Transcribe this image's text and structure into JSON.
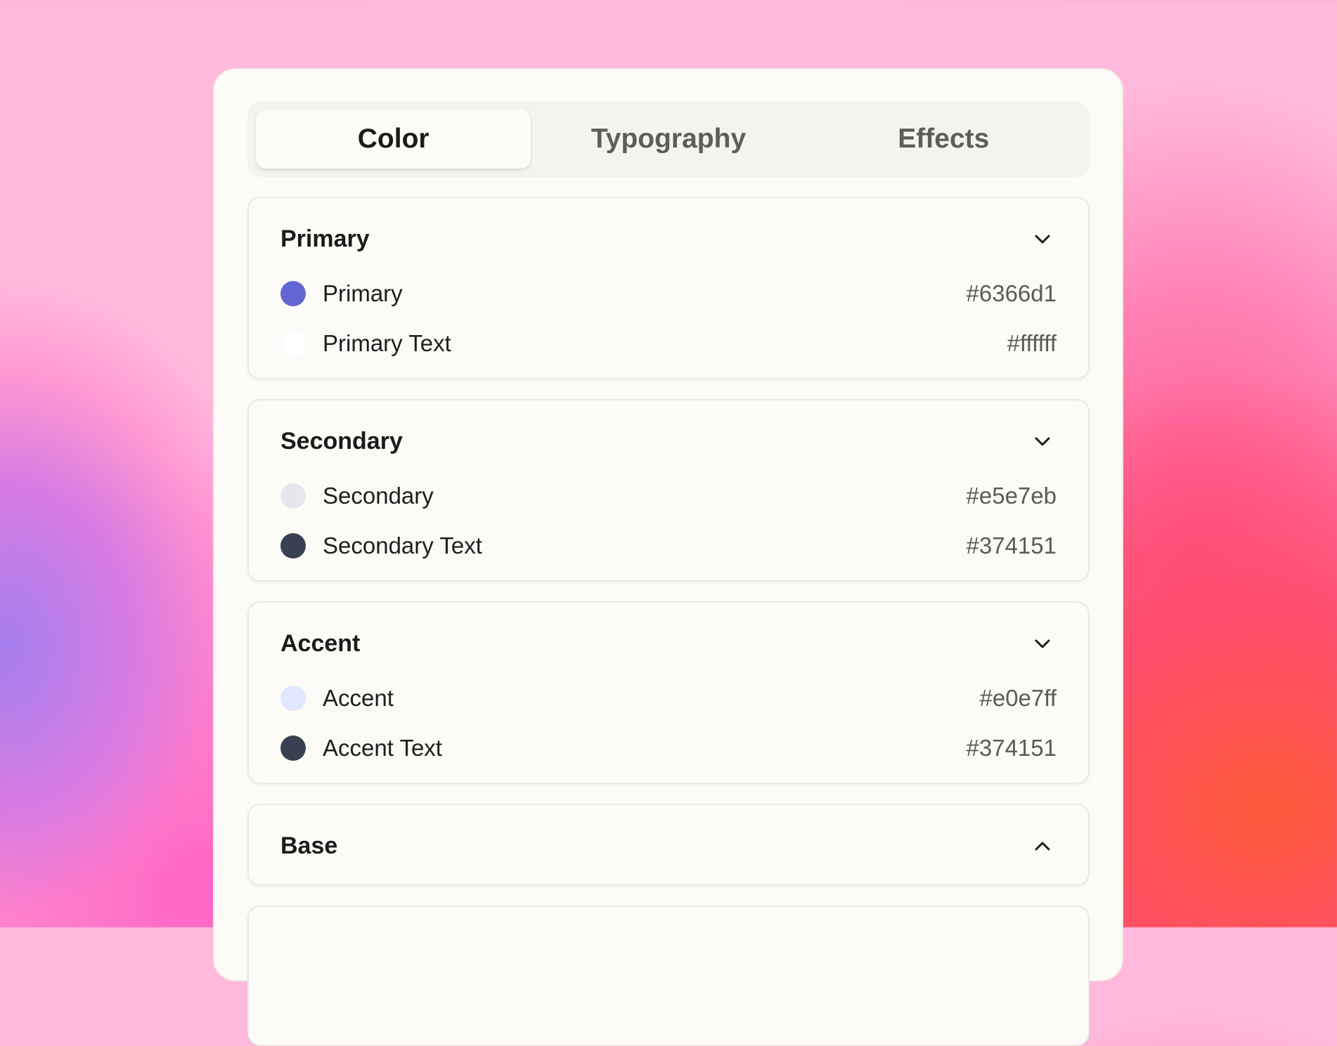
{
  "tabs": [
    {
      "label": "Color",
      "active": true
    },
    {
      "label": "Typography",
      "active": false
    },
    {
      "label": "Effects",
      "active": false
    }
  ],
  "groups": [
    {
      "title": "Primary",
      "expanded": true,
      "icon": "chevron-down-icon",
      "items": [
        {
          "label": "Primary",
          "value": "#6366d1",
          "swatch": "#6366d1"
        },
        {
          "label": "Primary Text",
          "value": "#ffffff",
          "swatch": "#ffffff"
        }
      ]
    },
    {
      "title": "Secondary",
      "expanded": true,
      "icon": "chevron-down-icon",
      "items": [
        {
          "label": "Secondary",
          "value": "#e5e7eb",
          "swatch": "#e5e7eb"
        },
        {
          "label": "Secondary Text",
          "value": "#374151",
          "swatch": "#374151"
        }
      ]
    },
    {
      "title": "Accent",
      "expanded": true,
      "icon": "chevron-down-icon",
      "items": [
        {
          "label": "Accent",
          "value": "#e0e7ff",
          "swatch": "#e0e7ff"
        },
        {
          "label": "Accent Text",
          "value": "#374151",
          "swatch": "#374151"
        }
      ]
    },
    {
      "title": "Base",
      "expanded": false,
      "icon": "chevron-up-icon",
      "items": []
    }
  ]
}
